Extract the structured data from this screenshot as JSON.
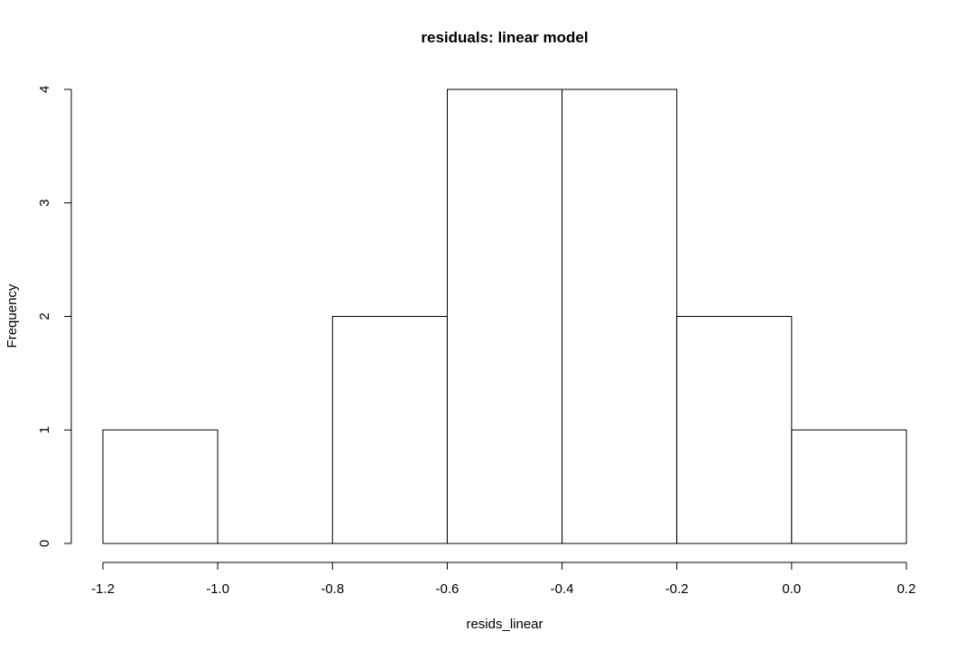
{
  "chart_data": {
    "type": "bar",
    "subtype": "histogram",
    "title": "residuals: linear model",
    "xlabel": "resids_linear",
    "ylabel": "Frequency",
    "bins": [
      {
        "start": -1.2,
        "end": -1.0,
        "count": 1
      },
      {
        "start": -1.0,
        "end": -0.8,
        "count": 0
      },
      {
        "start": -0.8,
        "end": -0.6,
        "count": 2
      },
      {
        "start": -0.6,
        "end": -0.4,
        "count": 4
      },
      {
        "start": -0.4,
        "end": -0.2,
        "count": 4
      },
      {
        "start": -0.2,
        "end": 0.0,
        "count": 2
      },
      {
        "start": 0.0,
        "end": 0.2,
        "count": 1
      }
    ],
    "xlim": [
      -1.2,
      0.2
    ],
    "ylim": [
      0,
      4
    ],
    "xticks": [
      -1.2,
      -1.0,
      -0.8,
      -0.6,
      -0.4,
      -0.2,
      0.0,
      0.2
    ],
    "xtick_labels": [
      "-1.2",
      "-1.0",
      "-0.8",
      "-0.6",
      "-0.4",
      "-0.2",
      "0.0",
      "0.2"
    ],
    "yticks": [
      0,
      1,
      2,
      3,
      4
    ],
    "ytick_labels": [
      "0",
      "1",
      "2",
      "3",
      "4"
    ],
    "grid": false,
    "legend": "none",
    "bar_fill": "#ffffff",
    "bar_stroke": "#000000"
  }
}
